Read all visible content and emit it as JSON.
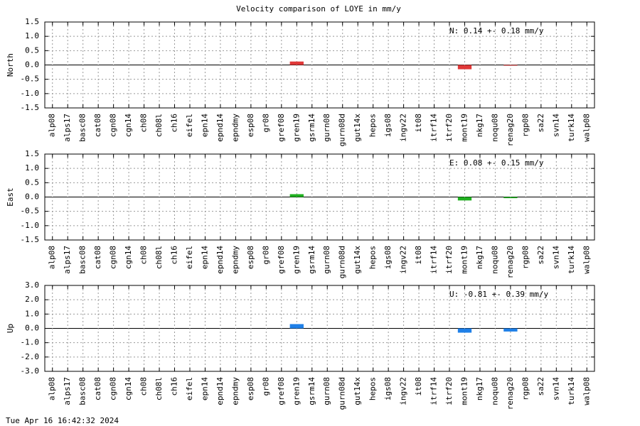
{
  "title": "Velocity comparison of LOYE in mm/y",
  "timestamp": "Tue Apr 16 16:42:32 2024",
  "chart_data": [
    {
      "type": "bar",
      "ylabel": "North",
      "annotation": "N:   0.14 +-  0.18 mm/y",
      "color": "#e03838",
      "grid": true,
      "categories": [
        "alp08",
        "alps17",
        "basc08",
        "cat08",
        "cgn08",
        "cgn14",
        "ch08",
        "ch08l",
        "ch16",
        "eifel",
        "epn14",
        "epnd14",
        "epndmy",
        "esp08",
        "gr08",
        "gref08",
        "gren19",
        "gsrm14",
        "gurn08",
        "gurn08d",
        "gut14x",
        "hepos",
        "igs08",
        "ingv22",
        "it08",
        "itrf14",
        "itrf20",
        "mont19",
        "nkg17",
        "noqu08",
        "renag20",
        "rgp08",
        "sa22",
        "svn14",
        "turk14",
        "walp08"
      ],
      "values": [
        null,
        null,
        null,
        null,
        null,
        null,
        null,
        null,
        null,
        null,
        null,
        null,
        null,
        null,
        null,
        null,
        0.12,
        null,
        null,
        null,
        null,
        null,
        null,
        null,
        null,
        null,
        null,
        -0.15,
        null,
        null,
        -0.02,
        null,
        null,
        null,
        null,
        null
      ],
      "ylim": [
        -1.5,
        1.5
      ],
      "yticks": [
        -1.5,
        {
          "value": -1.0,
          "label": "-1.0"
        },
        -0.5,
        {
          "value": 0,
          "label": "0.0"
        },
        0.5,
        {
          "value": 1.0,
          "label": "1.0"
        },
        1.5
      ]
    },
    {
      "type": "bar",
      "ylabel": "East",
      "annotation": "E:   0.08 +-  0.15 mm/y",
      "color": "#20b020",
      "grid": true,
      "categories": [
        "alp08",
        "alps17",
        "basc08",
        "cat08",
        "cgn08",
        "cgn14",
        "ch08",
        "ch08l",
        "ch16",
        "eifel",
        "epn14",
        "epnd14",
        "epndmy",
        "esp08",
        "gr08",
        "gref08",
        "gren19",
        "gsrm14",
        "gurn08",
        "gurn08d",
        "gut14x",
        "hepos",
        "igs08",
        "ingv22",
        "it08",
        "itrf14",
        "itrf20",
        "mont19",
        "nkg17",
        "noqu08",
        "renag20",
        "rgp08",
        "sa22",
        "svn14",
        "turk14",
        "walp08"
      ],
      "values": [
        null,
        null,
        null,
        null,
        null,
        null,
        null,
        null,
        null,
        null,
        null,
        null,
        null,
        null,
        null,
        null,
        0.1,
        null,
        null,
        null,
        null,
        null,
        null,
        null,
        null,
        null,
        null,
        -0.12,
        null,
        null,
        -0.04,
        null,
        null,
        null,
        null,
        null
      ],
      "ylim": [
        -1.5,
        1.5
      ],
      "yticks": [
        -1.5,
        {
          "value": -1.0,
          "label": "-1.0"
        },
        -0.5,
        {
          "value": 0,
          "label": "0.0"
        },
        0.5,
        {
          "value": 1.0,
          "label": "1.0"
        },
        1.5
      ]
    },
    {
      "type": "bar",
      "ylabel": "Up",
      "annotation": "U:  -0.81 +-  0.39 mm/y",
      "color": "#1f80e8",
      "grid": true,
      "categories": [
        "alp08",
        "alps17",
        "basc08",
        "cat08",
        "cgn08",
        "cgn14",
        "ch08",
        "ch08l",
        "ch16",
        "eifel",
        "epn14",
        "epnd14",
        "epndmy",
        "esp08",
        "gr08",
        "gref08",
        "gren19",
        "gsrm14",
        "gurn08",
        "gurn08d",
        "gut14x",
        "hepos",
        "igs08",
        "ingv22",
        "it08",
        "itrf14",
        "itrf20",
        "mont19",
        "nkg17",
        "noqu08",
        "renag20",
        "rgp08",
        "sa22",
        "svn14",
        "turk14",
        "walp08"
      ],
      "values": [
        null,
        null,
        null,
        null,
        null,
        null,
        null,
        null,
        null,
        null,
        null,
        null,
        null,
        null,
        null,
        null,
        0.3,
        null,
        null,
        null,
        null,
        null,
        null,
        null,
        null,
        null,
        null,
        -0.3,
        null,
        null,
        -0.22,
        null,
        null,
        null,
        null,
        null
      ],
      "ylim": [
        -3.0,
        3.0
      ],
      "yticks": [
        {
          "value": -3.0,
          "label": "-3.0"
        },
        {
          "value": -2.0,
          "label": "-2.0"
        },
        {
          "value": -1.0,
          "label": "-1.0"
        },
        {
          "value": 0,
          "label": "0.0"
        },
        {
          "value": 1.0,
          "label": "1.0"
        },
        {
          "value": 2.0,
          "label": "2.0"
        },
        {
          "value": 3.0,
          "label": "3.0"
        }
      ]
    }
  ]
}
